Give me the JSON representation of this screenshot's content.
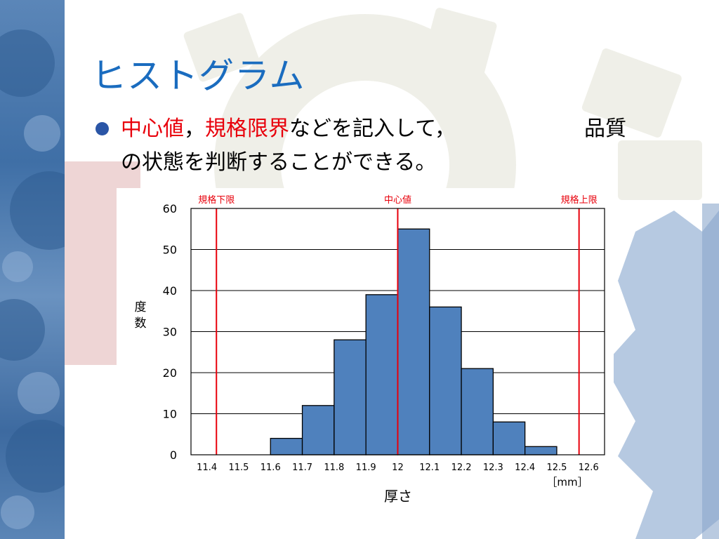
{
  "slide": {
    "title": "ヒストグラム",
    "bullet": {
      "red1": "中心値",
      "sep1": "，",
      "red2": "規格限界",
      "rest": "などを記入して，",
      "tail": "品質",
      "line2": "の状態を判断することができる。"
    }
  },
  "colors": {
    "title": "#1a6cbf",
    "highlight": "#e8000b",
    "bar_fill": "#4f81bd",
    "limit_line": "#e8000b",
    "band": "#3f6fa6"
  },
  "chart_data": {
    "type": "bar",
    "bin_edges": [
      11.4,
      11.5,
      11.6,
      11.7,
      11.8,
      11.9,
      12.0,
      12.1,
      12.2,
      12.3,
      12.4,
      12.5,
      12.6
    ],
    "x_tick_labels": [
      "11.4",
      "11.5",
      "11.6",
      "11.7",
      "11.8",
      "11.9",
      "12",
      "12.1",
      "12.2",
      "12.3",
      "12.4",
      "12.5",
      "12.6"
    ],
    "values": [
      0,
      0,
      4,
      12,
      28,
      39,
      55,
      36,
      21,
      8,
      2,
      0
    ],
    "xlabel": "厚さ",
    "x_unit": "［mm］",
    "ylabel": "度数",
    "ylim": [
      0,
      60
    ],
    "y_ticks": [
      0,
      10,
      20,
      30,
      40,
      50,
      60
    ],
    "grid": true,
    "reference_lines": [
      {
        "label": "規格下限",
        "x": 11.43
      },
      {
        "label": "中心値",
        "x": 12.0
      },
      {
        "label": "規格上限",
        "x": 12.57
      }
    ]
  }
}
